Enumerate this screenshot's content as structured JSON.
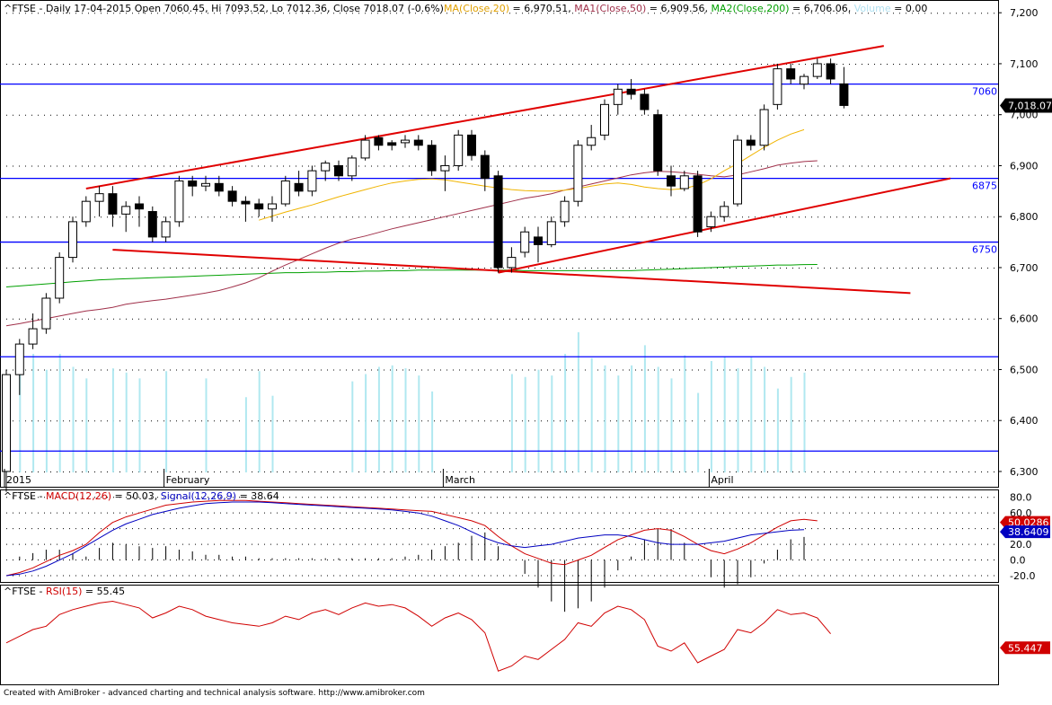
{
  "colors": {
    "background": "#ffffff",
    "grid": "#000000",
    "axis": "#000000",
    "candle_up": "#ffffff",
    "candle_down": "#000000",
    "ma20": "#f0b400",
    "ma50": "#a0304a",
    "ma200": "#00a000",
    "volume": "#b0e8f0",
    "hline": "#0000ff",
    "trendline": "#e00000",
    "macd": "#d00000",
    "signal": "#0000c0",
    "rsi": "#d00000"
  },
  "price_panel": {
    "legend": [
      {
        "text": "^FTSE - Daily 17-04-2015 Open 7060.45, Hi 7093.52, Lo 7012.36, Close 7018.07 (-0.6%)",
        "color": "#000000"
      },
      {
        "text": "MA(Close,20)",
        "color": "#e0a000"
      },
      {
        "text": " = 6,970.51, ",
        "color": "#000000"
      },
      {
        "text": "MA1(Close,50)",
        "color": "#a0304a"
      },
      {
        "text": " = 6,909.56, ",
        "color": "#000000"
      },
      {
        "text": "MA2(Close,200)",
        "color": "#00a000"
      },
      {
        "text": " = 6,706.06, ",
        "color": "#000000"
      },
      {
        "text": "Volume",
        "color": "#b0e0f0"
      },
      {
        "text": " = 0.00",
        "color": "#000000"
      }
    ],
    "y_ticks": [
      "7,200",
      "7,100",
      "7,000",
      "6,900",
      "6,800",
      "6,700",
      "6,600",
      "6,500",
      "6,400",
      "6,300"
    ],
    "last_price_label": "7,018.07",
    "hline_labels": [
      "7060",
      "6875",
      "6750"
    ],
    "month_labels": [
      "2015",
      "February",
      "March",
      "April"
    ]
  },
  "macd_panel": {
    "legend": [
      {
        "text": "^FTSE - ",
        "color": "#000000"
      },
      {
        "text": "MACD(12,26)",
        "color": "#d00000"
      },
      {
        "text": " = 50.03, ",
        "color": "#000000"
      },
      {
        "text": "Signal(12,26,9)",
        "color": "#0000c0"
      },
      {
        "text": " = 38.64",
        "color": "#000000"
      }
    ],
    "y_ticks": [
      "80.0",
      "60.0",
      "40.0",
      "20.0",
      "0.0",
      "-20.0"
    ],
    "macd_value_label": "50.0286",
    "signal_value_label": "38.6409"
  },
  "rsi_panel": {
    "legend": [
      {
        "text": "^FTSE - ",
        "color": "#000000"
      },
      {
        "text": "RSI(15)",
        "color": "#d00000"
      },
      {
        "text": " = 55.45",
        "color": "#000000"
      }
    ],
    "value_label": "55.447"
  },
  "footer": "Created with AmiBroker - advanced charting and technical analysis software. http://www.amibroker.com",
  "chart_data": {
    "type": "candlestick",
    "symbol": "^FTSE",
    "period": "Daily",
    "x_labels": [
      "2015",
      "February",
      "March",
      "April"
    ],
    "price_ylim": [
      6270,
      7225
    ],
    "candles": [
      {
        "o": 6300,
        "h": 6500,
        "l": 6260,
        "c": 6490
      },
      {
        "o": 6490,
        "h": 6560,
        "l": 6450,
        "c": 6550
      },
      {
        "o": 6550,
        "h": 6610,
        "l": 6540,
        "c": 6580
      },
      {
        "o": 6580,
        "h": 6650,
        "l": 6570,
        "c": 6640
      },
      {
        "o": 6640,
        "h": 6730,
        "l": 6630,
        "c": 6720
      },
      {
        "o": 6720,
        "h": 6800,
        "l": 6710,
        "c": 6790
      },
      {
        "o": 6790,
        "h": 6840,
        "l": 6780,
        "c": 6830
      },
      {
        "o": 6830,
        "h": 6860,
        "l": 6800,
        "c": 6845
      },
      {
        "o": 6845,
        "h": 6860,
        "l": 6780,
        "c": 6805
      },
      {
        "o": 6805,
        "h": 6830,
        "l": 6770,
        "c": 6820
      },
      {
        "o": 6825,
        "h": 6840,
        "l": 6780,
        "c": 6815
      },
      {
        "o": 6810,
        "h": 6820,
        "l": 6750,
        "c": 6760
      },
      {
        "o": 6760,
        "h": 6800,
        "l": 6750,
        "c": 6790
      },
      {
        "o": 6790,
        "h": 6880,
        "l": 6780,
        "c": 6870
      },
      {
        "o": 6870,
        "h": 6880,
        "l": 6840,
        "c": 6860
      },
      {
        "o": 6860,
        "h": 6880,
        "l": 6850,
        "c": 6865
      },
      {
        "o": 6865,
        "h": 6880,
        "l": 6840,
        "c": 6850
      },
      {
        "o": 6850,
        "h": 6860,
        "l": 6820,
        "c": 6830
      },
      {
        "o": 6830,
        "h": 6840,
        "l": 6790,
        "c": 6825
      },
      {
        "o": 6825,
        "h": 6835,
        "l": 6800,
        "c": 6815
      },
      {
        "o": 6815,
        "h": 6840,
        "l": 6790,
        "c": 6825
      },
      {
        "o": 6825,
        "h": 6880,
        "l": 6820,
        "c": 6870
      },
      {
        "o": 6865,
        "h": 6890,
        "l": 6840,
        "c": 6850
      },
      {
        "o": 6850,
        "h": 6900,
        "l": 6840,
        "c": 6890
      },
      {
        "o": 6890,
        "h": 6910,
        "l": 6870,
        "c": 6905
      },
      {
        "o": 6900,
        "h": 6910,
        "l": 6870,
        "c": 6880
      },
      {
        "o": 6880,
        "h": 6920,
        "l": 6870,
        "c": 6915
      },
      {
        "o": 6915,
        "h": 6960,
        "l": 6910,
        "c": 6950
      },
      {
        "o": 6955,
        "h": 6960,
        "l": 6930,
        "c": 6940
      },
      {
        "o": 6945,
        "h": 6950,
        "l": 6930,
        "c": 6940
      },
      {
        "o": 6945,
        "h": 6960,
        "l": 6935,
        "c": 6950
      },
      {
        "o": 6950,
        "h": 6960,
        "l": 6930,
        "c": 6940
      },
      {
        "o": 6940,
        "h": 6950,
        "l": 6880,
        "c": 6890
      },
      {
        "o": 6890,
        "h": 6920,
        "l": 6850,
        "c": 6900
      },
      {
        "o": 6900,
        "h": 6970,
        "l": 6890,
        "c": 6960
      },
      {
        "o": 6960,
        "h": 6970,
        "l": 6910,
        "c": 6920
      },
      {
        "o": 6920,
        "h": 6930,
        "l": 6850,
        "c": 6875
      },
      {
        "o": 6880,
        "h": 6890,
        "l": 6690,
        "c": 6700
      },
      {
        "o": 6700,
        "h": 6740,
        "l": 6690,
        "c": 6720
      },
      {
        "o": 6730,
        "h": 6780,
        "l": 6720,
        "c": 6770
      },
      {
        "o": 6760,
        "h": 6780,
        "l": 6710,
        "c": 6745
      },
      {
        "o": 6745,
        "h": 6800,
        "l": 6740,
        "c": 6790
      },
      {
        "o": 6790,
        "h": 6840,
        "l": 6780,
        "c": 6830
      },
      {
        "o": 6830,
        "h": 6950,
        "l": 6820,
        "c": 6940
      },
      {
        "o": 6940,
        "h": 6980,
        "l": 6930,
        "c": 6955
      },
      {
        "o": 6960,
        "h": 7030,
        "l": 6950,
        "c": 7020
      },
      {
        "o": 7020,
        "h": 7060,
        "l": 7000,
        "c": 7050
      },
      {
        "o": 7050,
        "h": 7070,
        "l": 7030,
        "c": 7040
      },
      {
        "o": 7040,
        "h": 7050,
        "l": 7000,
        "c": 7010
      },
      {
        "o": 7000,
        "h": 7010,
        "l": 6880,
        "c": 6890
      },
      {
        "o": 6880,
        "h": 6900,
        "l": 6840,
        "c": 6860
      },
      {
        "o": 6855,
        "h": 6890,
        "l": 6850,
        "c": 6880
      },
      {
        "o": 6880,
        "h": 6890,
        "l": 6760,
        "c": 6770
      },
      {
        "o": 6780,
        "h": 6810,
        "l": 6770,
        "c": 6800
      },
      {
        "o": 6800,
        "h": 6830,
        "l": 6790,
        "c": 6820
      },
      {
        "o": 6825,
        "h": 6960,
        "l": 6820,
        "c": 6950
      },
      {
        "o": 6950,
        "h": 6960,
        "l": 6930,
        "c": 6940
      },
      {
        "o": 6940,
        "h": 7020,
        "l": 6930,
        "c": 7010
      },
      {
        "o": 7020,
        "h": 7100,
        "l": 7010,
        "c": 7090
      },
      {
        "o": 7090,
        "h": 7100,
        "l": 7060,
        "c": 7070
      },
      {
        "o": 7060,
        "h": 7080,
        "l": 7050,
        "c": 7075
      },
      {
        "o": 7075,
        "h": 7110,
        "l": 7070,
        "c": 7100
      },
      {
        "o": 7100,
        "h": 7110,
        "l": 7060,
        "c": 7070
      },
      {
        "o": 7060.45,
        "h": 7093.52,
        "l": 7012.36,
        "c": 7018.07
      }
    ],
    "volume": [
      0.5,
      0.75,
      0.82,
      0.71,
      0.82,
      0.73,
      0.65,
      0.0,
      0.72,
      0.69,
      0.65,
      0.0,
      0.7,
      0.0,
      0.0,
      0.65,
      0.0,
      0.0,
      0.52,
      0.7,
      0.53,
      0.0,
      0.0,
      0.0,
      0.0,
      0.0,
      0.63,
      0.68,
      0.73,
      0.74,
      0.72,
      0.67,
      0.56,
      0.0,
      0.0,
      0.0,
      0.0,
      0.0,
      0.68,
      0.66,
      0.71,
      0.67,
      0.82,
      0.97,
      0.79,
      0.74,
      0.67,
      0.74,
      0.88,
      0.73,
      0.65,
      0.81,
      0.55,
      0.77,
      0.8,
      0.72,
      0.8,
      0.73,
      0.58,
      0.66,
      0.69
    ],
    "ma20_start_index": 19,
    "ma20": [
      6793,
      6801,
      6809,
      6816,
      6823,
      6831,
      6839,
      6846,
      6853,
      6860,
      6866,
      6870,
      6873,
      6874,
      6872,
      6868,
      6864,
      6860,
      6856,
      6853,
      6851,
      6850,
      6850,
      6852,
      6855,
      6860,
      6864,
      6866,
      6863,
      6858,
      6855,
      6853,
      6855,
      6862,
      6874,
      6890,
      6904,
      6920,
      6936,
      6950,
      6962,
      6970.51
    ],
    "ma50_start_index": 0,
    "ma50": [
      6586,
      6590,
      6595,
      6600,
      6605,
      6610,
      6615,
      6618,
      6622,
      6628,
      6632,
      6635,
      6638,
      6642,
      6646,
      6650,
      6655,
      6662,
      6670,
      6680,
      6693,
      6705,
      6716,
      6727,
      6738,
      6748,
      6756,
      6762,
      6769,
      6776,
      6782,
      6788,
      6794,
      6800,
      6806,
      6812,
      6818,
      6824,
      6830,
      6836,
      6840,
      6845,
      6852,
      6858,
      6864,
      6870,
      6876,
      6882,
      6886,
      6889,
      6888,
      6886,
      6883,
      6880,
      6878,
      6882,
      6888,
      6894,
      6901,
      6905,
      6908,
      6909.56
    ],
    "ma200": [
      6662,
      6664,
      6666,
      6668,
      6670,
      6672,
      6674,
      6676,
      6677,
      6678,
      6679,
      6680,
      6681,
      6682,
      6683,
      6684,
      6685,
      6686,
      6687,
      6688,
      6689,
      6690,
      6690,
      6691,
      6691,
      6692,
      6692,
      6693,
      6693,
      6694,
      6694,
      6695,
      6695,
      6695,
      6695,
      6695,
      6695,
      6695,
      6695,
      6694,
      6694,
      6694,
      6694,
      6694,
      6694,
      6694,
      6694,
      6694,
      6695,
      6696,
      6697,
      6698,
      6699,
      6700,
      6701,
      6702,
      6703,
      6704,
      6705,
      6705,
      6706,
      6706.06
    ],
    "horizontal_levels": [
      7060,
      6875,
      6750,
      6525,
      6340
    ],
    "trendlines": [
      {
        "from": [
          6,
          6855
        ],
        "to": [
          66,
          7135
        ]
      },
      {
        "from": [
          8,
          6735
        ],
        "to": [
          68,
          6650
        ]
      },
      {
        "from": [
          37,
          6690
        ],
        "to": [
          71,
          6875
        ]
      }
    ],
    "macd": [
      -20,
      -16,
      -10,
      -2,
      6,
      12,
      20,
      35,
      48,
      55,
      60,
      65,
      70,
      72,
      74,
      75,
      76,
      76,
      76,
      75,
      74,
      73,
      72,
      71,
      70,
      69,
      68,
      67,
      66,
      65,
      64,
      63,
      62,
      58,
      54,
      50,
      44,
      30,
      18,
      8,
      2,
      -4,
      -6,
      0,
      6,
      16,
      26,
      32,
      38,
      40,
      38,
      30,
      20,
      12,
      8,
      14,
      22,
      32,
      42,
      50,
      52,
      50.03
    ],
    "signal": [
      -20,
      -18,
      -14,
      -8,
      0,
      8,
      18,
      28,
      38,
      46,
      52,
      58,
      62,
      66,
      69,
      72,
      73,
      74,
      74,
      74,
      73,
      72,
      71,
      70,
      69,
      68,
      67,
      66,
      65,
      64,
      62,
      60,
      56,
      50,
      44,
      36,
      28,
      22,
      18,
      16,
      18,
      20,
      24,
      28,
      30,
      32,
      32,
      30,
      26,
      22,
      20,
      20,
      20,
      22,
      24,
      28,
      32,
      34,
      36,
      38,
      38.64
    ],
    "macd_ylim": [
      -28,
      90
    ],
    "rsi": [
      50,
      54,
      58,
      60,
      67,
      70,
      72,
      74,
      75,
      73,
      71,
      65,
      68,
      72,
      70,
      66,
      64,
      62,
      61,
      60,
      62,
      66,
      64,
      68,
      70,
      67,
      71,
      74,
      72,
      73,
      71,
      66,
      60,
      65,
      68,
      64,
      56,
      33,
      36,
      42,
      40,
      46,
      52,
      62,
      60,
      68,
      72,
      70,
      64,
      48,
      45,
      50,
      38,
      42,
      46,
      58,
      56,
      62,
      70,
      67,
      68,
      65,
      55.45
    ],
    "rsi_ylim": [
      25,
      85
    ]
  }
}
